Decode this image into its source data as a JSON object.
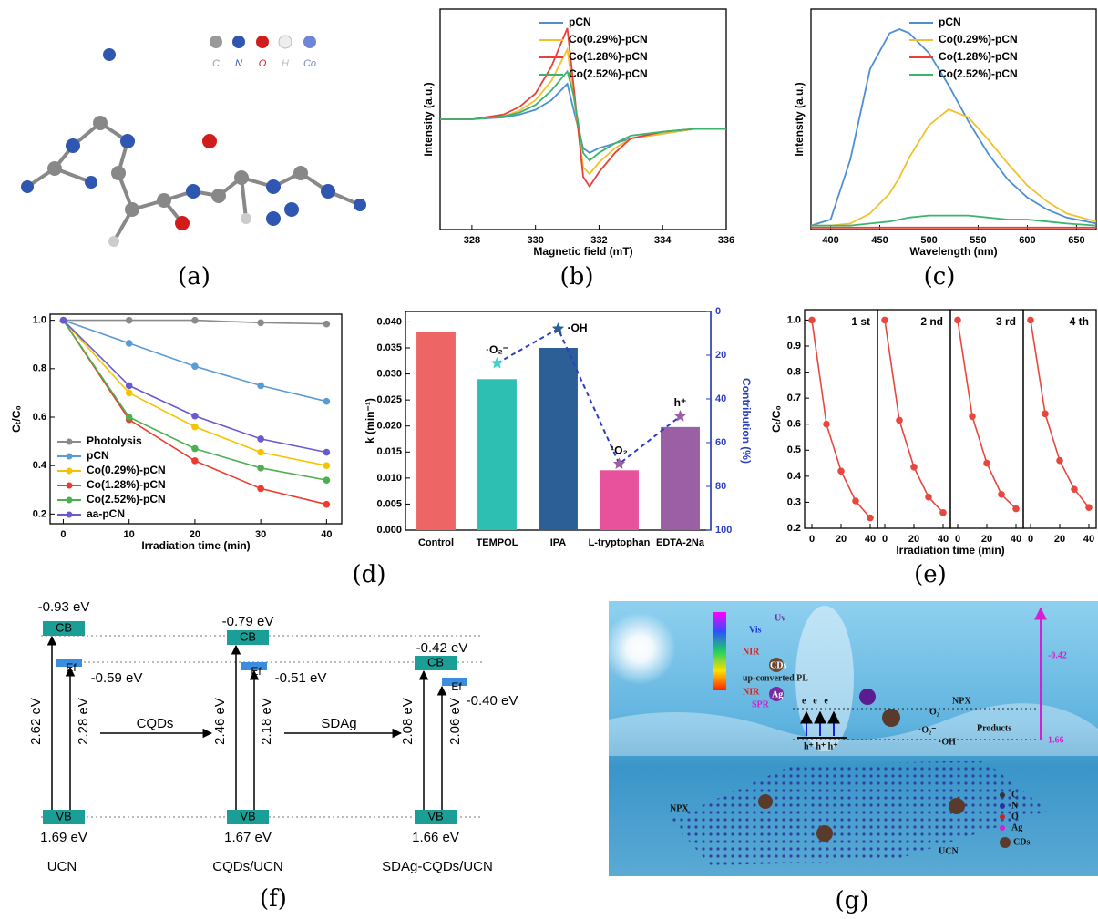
{
  "panel_labels": [
    "(a)",
    "(b)",
    "(c)",
    "(d)",
    "(e)",
    "(f)",
    "(g)"
  ],
  "molecule": {
    "legend": [
      "C",
      "N",
      "O",
      "H",
      "Co"
    ]
  },
  "chart_data": [
    {
      "type": "line",
      "x_label": "Magnetic field (mT)",
      "y_label": "Intensity (a.u.)",
      "x": [
        327,
        328,
        329,
        329.5,
        330,
        330.5,
        331,
        331.2,
        331.5,
        331.7,
        332,
        332.5,
        333,
        334,
        335,
        336
      ],
      "xlim": [
        327,
        336
      ],
      "xticks": [
        328,
        330,
        332,
        334,
        336
      ],
      "ylim": [
        -1.1,
        1.2
      ],
      "legend": "upper right",
      "series": [
        {
          "name": "pCN",
          "color": "#4d8fd1",
          "values": [
            0.05,
            0.05,
            0.07,
            0.1,
            0.15,
            0.25,
            0.42,
            0.15,
            -0.25,
            -0.3,
            -0.25,
            -0.2,
            -0.15,
            -0.1,
            -0.05,
            -0.05
          ]
        },
        {
          "name": "Co(0.29%)-pCN",
          "color": "#f2c12e",
          "values": [
            0.05,
            0.05,
            0.08,
            0.14,
            0.25,
            0.45,
            0.78,
            0.3,
            -0.45,
            -0.52,
            -0.4,
            -0.25,
            -0.15,
            -0.1,
            -0.05,
            -0.05
          ]
        },
        {
          "name": "Co(1.28%)-pCN",
          "color": "#e8413c",
          "values": [
            0.05,
            0.05,
            0.1,
            0.18,
            0.32,
            0.6,
            1.0,
            0.4,
            -0.55,
            -0.65,
            -0.5,
            -0.3,
            -0.15,
            -0.08,
            -0.05,
            -0.05
          ]
        },
        {
          "name": "Co(2.52%)-pCN",
          "color": "#3cb46e",
          "values": [
            0.05,
            0.05,
            0.08,
            0.12,
            0.2,
            0.35,
            0.55,
            0.3,
            -0.3,
            -0.38,
            -0.3,
            -0.2,
            -0.12,
            -0.08,
            -0.05,
            -0.05
          ]
        }
      ]
    },
    {
      "type": "line",
      "x_label": "Wavelength (nm)",
      "y_label": "Intensity (a.u.)",
      "x": [
        380,
        400,
        420,
        440,
        460,
        470,
        480,
        500,
        520,
        540,
        560,
        580,
        600,
        620,
        640,
        670
      ],
      "xlim": [
        380,
        670
      ],
      "xticks": [
        400,
        450,
        500,
        550,
        600,
        650
      ],
      "ylim": [
        0,
        1.1
      ],
      "legend": "upper right",
      "series": [
        {
          "name": "pCN",
          "color": "#4d8fd1",
          "values": [
            0.02,
            0.05,
            0.35,
            0.8,
            0.98,
            1.0,
            0.98,
            0.88,
            0.72,
            0.54,
            0.38,
            0.25,
            0.16,
            0.1,
            0.06,
            0.03
          ]
        },
        {
          "name": "Co(0.29%)-pCN",
          "color": "#f2c12e",
          "values": [
            0.02,
            0.02,
            0.03,
            0.08,
            0.18,
            0.26,
            0.36,
            0.52,
            0.6,
            0.56,
            0.45,
            0.33,
            0.22,
            0.14,
            0.08,
            0.04
          ]
        },
        {
          "name": "Co(1.28%)-pCN",
          "color": "#e8413c",
          "values": [
            0.01,
            0.01,
            0.01,
            0.01,
            0.01,
            0.01,
            0.01,
            0.01,
            0.01,
            0.01,
            0.01,
            0.01,
            0.01,
            0.01,
            0.01,
            0.01
          ]
        },
        {
          "name": "Co(2.52%)-pCN",
          "color": "#3cb46e",
          "values": [
            0.02,
            0.02,
            0.02,
            0.03,
            0.04,
            0.05,
            0.06,
            0.07,
            0.07,
            0.07,
            0.06,
            0.05,
            0.05,
            0.04,
            0.03,
            0.02
          ]
        }
      ]
    },
    {
      "type": "line",
      "x_label": "Irradiation time (min)",
      "y_label": "Cₜ/C₀",
      "x": [
        0,
        10,
        20,
        30,
        40
      ],
      "xlim": [
        -2,
        42.3
      ],
      "xticks": [
        0,
        10,
        20,
        30,
        40
      ],
      "ylim": [
        0.16,
        1.025
      ],
      "yticks": [
        0.2,
        0.4,
        0.6,
        0.8,
        {
          "value": 1,
          "label": "1.0"
        }
      ],
      "markers": true,
      "legend": "lower left",
      "series": [
        {
          "name": "Photolysis",
          "color": "#8a8a8a",
          "values": [
            1.0,
            1.0,
            1.0,
            0.99,
            0.985
          ]
        },
        {
          "name": "pCN",
          "color": "#5b9bd5",
          "values": [
            1.0,
            0.905,
            0.81,
            0.73,
            0.665
          ]
        },
        {
          "name": "Co(0.29%)-pCN",
          "color": "#f5c400",
          "values": [
            1.0,
            0.7,
            0.56,
            0.455,
            0.4
          ]
        },
        {
          "name": "Co(1.28%)-pCN",
          "color": "#ee3b2f",
          "values": [
            1.0,
            0.59,
            0.42,
            0.305,
            0.24
          ]
        },
        {
          "name": "Co(2.52%)-pCN",
          "color": "#4cb050",
          "values": [
            1.0,
            0.6,
            0.47,
            0.39,
            0.34
          ]
        },
        {
          "name": "aa-pCN",
          "color": "#6a5acd",
          "values": [
            1.0,
            0.73,
            0.605,
            0.51,
            0.455
          ]
        }
      ]
    },
    {
      "type": "bar",
      "y_label": "k (min⁻¹)",
      "y2_label": "Contribution (%)",
      "categories": [
        "Control",
        "TEMPOL",
        "IPA",
        "L-tryptophan",
        "EDTA-2Na"
      ],
      "values": [
        0.038,
        0.029,
        0.035,
        0.0115,
        0.0198
      ],
      "colors": [
        "#ee6565",
        "#2ebfb3",
        "#2c5f95",
        "#e8529c",
        "#9b5fa3"
      ],
      "ylim": [
        0,
        0.042
      ],
      "yticks": [
        {
          "value": 0,
          "label": "0.000"
        },
        {
          "value": 0.005,
          "label": "0.005"
        },
        {
          "value": 0.01,
          "label": "0.010"
        },
        {
          "value": 0.015,
          "label": "0.015"
        },
        {
          "value": 0.02,
          "label": "0.020"
        },
        {
          "value": 0.025,
          "label": "0.025"
        },
        {
          "value": 0.03,
          "label": "0.030"
        },
        {
          "value": 0.035,
          "label": "0.035"
        },
        {
          "value": 0.04,
          "label": "0.040"
        }
      ],
      "y2lim": [
        100,
        0
      ],
      "y2ticks": [
        0,
        20,
        40,
        60,
        80,
        100
      ],
      "series": [
        {
          "axis": "y2",
          "color": "#2b3fbf",
          "values": [
            null,
            23.7,
            7.9,
            69.7,
            47.9
          ],
          "point_labels": [
            null,
            "·O₂⁻",
            "·OH",
            "¹O₂",
            "h⁺"
          ]
        }
      ]
    },
    {
      "type": "line",
      "facets": true,
      "x_label": "Irradiation time (min)",
      "y_label": "Cₜ/C₀",
      "x": [
        0,
        10,
        20,
        30,
        40
      ],
      "xlim": [
        -5,
        45
      ],
      "xticks": [
        0,
        20,
        40
      ],
      "ylim": [
        0.2,
        1.04
      ],
      "yticks": [
        0.2,
        0.3,
        0.4,
        0.5,
        0.6,
        0.7,
        0.8,
        0.9,
        {
          "value": 1,
          "label": "1.0"
        }
      ],
      "markers": true,
      "series": [
        {
          "name": "1 st",
          "color": "#e8473e",
          "values": [
            1.0,
            0.6,
            0.42,
            0.305,
            0.24
          ]
        },
        {
          "name": "2 nd",
          "color": "#e8473e",
          "values": [
            1.0,
            0.615,
            0.435,
            0.32,
            0.26
          ]
        },
        {
          "name": "3 rd",
          "color": "#e8473e",
          "values": [
            1.0,
            0.63,
            0.45,
            0.33,
            0.275
          ]
        },
        {
          "name": "4 th",
          "color": "#e8473e",
          "values": [
            1.0,
            0.64,
            0.46,
            0.35,
            0.28
          ]
        }
      ]
    }
  ],
  "energy_diagram": {
    "columns": [
      {
        "name": "UCN",
        "cb_box": "CB",
        "cb": "-0.93 eV",
        "ef_box": "Ef",
        "ef": "-0.59 eV",
        "vb_box": "VB",
        "vb": "1.69 eV",
        "gap_cb": "2.62 eV",
        "gap_ef": "2.28 eV"
      },
      {
        "name": "CQDs/UCN",
        "cb_box": "CB",
        "cb": "-0.79 eV",
        "ef_box": "Ef",
        "ef": "-0.51 eV",
        "vb_box": "VB",
        "vb": "1.67 eV",
        "gap_cb": "2.46 eV",
        "gap_ef": "2.18 eV"
      },
      {
        "name": "SDAg-CQDs/UCN",
        "cb_box": "CB",
        "cb": "-0.42 eV",
        "ef_box": "Ef",
        "ef": "-0.40 eV",
        "vb_box": "VB",
        "vb": "1.66 eV",
        "gap_cb": "2.08 eV",
        "gap_ef": "2.06 eV"
      }
    ],
    "steps": [
      "CQDs",
      "SDAg"
    ]
  },
  "illustration": {
    "light": [
      "Uv",
      "Vis",
      "NIR",
      "NIR"
    ],
    "labels": {
      "cds": "CDs",
      "pl": "up-converted PL",
      "ag": "Ag",
      "spr": "SPR",
      "npx": "NPX",
      "products": "Products",
      "cb_level": "-0.42",
      "vb_level": "1.66",
      "ucn": "UCN",
      "o2": "O₂",
      "o2r": "·O₂⁻",
      "oh": "·OH",
      "e": "e⁻ e⁻ e⁻",
      "h": "h⁺ h⁺ h⁺"
    },
    "key": [
      "C",
      "N",
      "O",
      "Ag",
      "CDs"
    ]
  }
}
